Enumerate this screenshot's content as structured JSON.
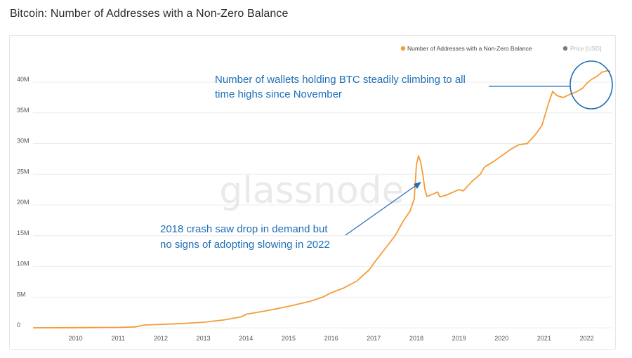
{
  "title": "Bitcoin: Number of Addresses with a Non-Zero Balance",
  "watermark": "glassnode",
  "colors": {
    "series": "#f39c3a",
    "annotation": "#1e6fb8",
    "grid": "#ececec",
    "price_dot": "#7a7a7a"
  },
  "legend": [
    {
      "label": "Number of Addresses with a Non-Zero Balance",
      "color": "#f39c3a",
      "active": true
    },
    {
      "label": "Price [USD]",
      "color": "#7a7a7a",
      "active": false
    }
  ],
  "annotations": [
    {
      "lines": [
        "Number of wallets holding BTC steadily climbing to all",
        "time highs since November"
      ]
    },
    {
      "lines": [
        "2018 crash saw drop in demand but",
        "no signs of adopting slowing in 2022"
      ]
    }
  ],
  "chart_data": {
    "type": "line",
    "title": "Bitcoin: Number of Addresses with a Non-Zero Balance",
    "xlabel": "",
    "ylabel": "",
    "xlim": [
      2009.0,
      2022.6
    ],
    "ylim": [
      0,
      42000000
    ],
    "y_ticks": [
      {
        "value": 0,
        "label": "0"
      },
      {
        "value": 5000000,
        "label": "5M"
      },
      {
        "value": 10000000,
        "label": "10M"
      },
      {
        "value": 15000000,
        "label": "15M"
      },
      {
        "value": 20000000,
        "label": "20M"
      },
      {
        "value": 25000000,
        "label": "25M"
      },
      {
        "value": 30000000,
        "label": "30M"
      },
      {
        "value": 35000000,
        "label": "35M"
      },
      {
        "value": 40000000,
        "label": "40M"
      }
    ],
    "x_ticks": [
      {
        "value": 2010,
        "label": "2010"
      },
      {
        "value": 2011,
        "label": "2011"
      },
      {
        "value": 2012,
        "label": "2012"
      },
      {
        "value": 2013,
        "label": "2013"
      },
      {
        "value": 2014,
        "label": "2014"
      },
      {
        "value": 2015,
        "label": "2015"
      },
      {
        "value": 2016,
        "label": "2016"
      },
      {
        "value": 2017,
        "label": "2017"
      },
      {
        "value": 2018,
        "label": "2018"
      },
      {
        "value": 2019,
        "label": "2019"
      },
      {
        "value": 2020,
        "label": "2020"
      },
      {
        "value": 2021,
        "label": "2021"
      },
      {
        "value": 2022,
        "label": "2022"
      }
    ],
    "series": [
      {
        "name": "Number of Addresses with a Non-Zero Balance",
        "color": "#f39c3a",
        "points": [
          [
            2009.0,
            0
          ],
          [
            2010.0,
            20000
          ],
          [
            2011.0,
            60000
          ],
          [
            2011.4,
            150000
          ],
          [
            2011.6,
            450000
          ],
          [
            2011.9,
            520000
          ],
          [
            2012.0,
            550000
          ],
          [
            2012.5,
            700000
          ],
          [
            2013.0,
            900000
          ],
          [
            2013.5,
            1300000
          ],
          [
            2013.9,
            1800000
          ],
          [
            2014.0,
            2200000
          ],
          [
            2014.5,
            2800000
          ],
          [
            2015.0,
            3500000
          ],
          [
            2015.5,
            4300000
          ],
          [
            2015.8,
            5000000
          ],
          [
            2016.0,
            5700000
          ],
          [
            2016.3,
            6500000
          ],
          [
            2016.6,
            7600000
          ],
          [
            2016.9,
            9500000
          ],
          [
            2017.0,
            10500000
          ],
          [
            2017.3,
            13200000
          ],
          [
            2017.5,
            15000000
          ],
          [
            2017.7,
            17500000
          ],
          [
            2017.85,
            19000000
          ],
          [
            2017.95,
            21000000
          ],
          [
            2018.0,
            26500000
          ],
          [
            2018.05,
            28000000
          ],
          [
            2018.1,
            27000000
          ],
          [
            2018.15,
            25000000
          ],
          [
            2018.2,
            22500000
          ],
          [
            2018.25,
            21400000
          ],
          [
            2018.4,
            21800000
          ],
          [
            2018.5,
            22100000
          ],
          [
            2018.55,
            21300000
          ],
          [
            2018.7,
            21600000
          ],
          [
            2018.9,
            22200000
          ],
          [
            2019.0,
            22500000
          ],
          [
            2019.1,
            22300000
          ],
          [
            2019.3,
            23800000
          ],
          [
            2019.5,
            25000000
          ],
          [
            2019.6,
            26200000
          ],
          [
            2019.8,
            27000000
          ],
          [
            2020.0,
            28000000
          ],
          [
            2020.2,
            29000000
          ],
          [
            2020.4,
            29800000
          ],
          [
            2020.6,
            30000000
          ],
          [
            2020.8,
            31500000
          ],
          [
            2020.95,
            33000000
          ],
          [
            2021.1,
            36500000
          ],
          [
            2021.2,
            38500000
          ],
          [
            2021.3,
            37800000
          ],
          [
            2021.45,
            37500000
          ],
          [
            2021.6,
            38000000
          ],
          [
            2021.75,
            38400000
          ],
          [
            2021.9,
            39000000
          ],
          [
            2022.0,
            39800000
          ],
          [
            2022.1,
            40400000
          ],
          [
            2022.25,
            41000000
          ],
          [
            2022.35,
            41600000
          ],
          [
            2022.5,
            41900000
          ],
          [
            2022.55,
            41700000
          ]
        ]
      }
    ]
  }
}
